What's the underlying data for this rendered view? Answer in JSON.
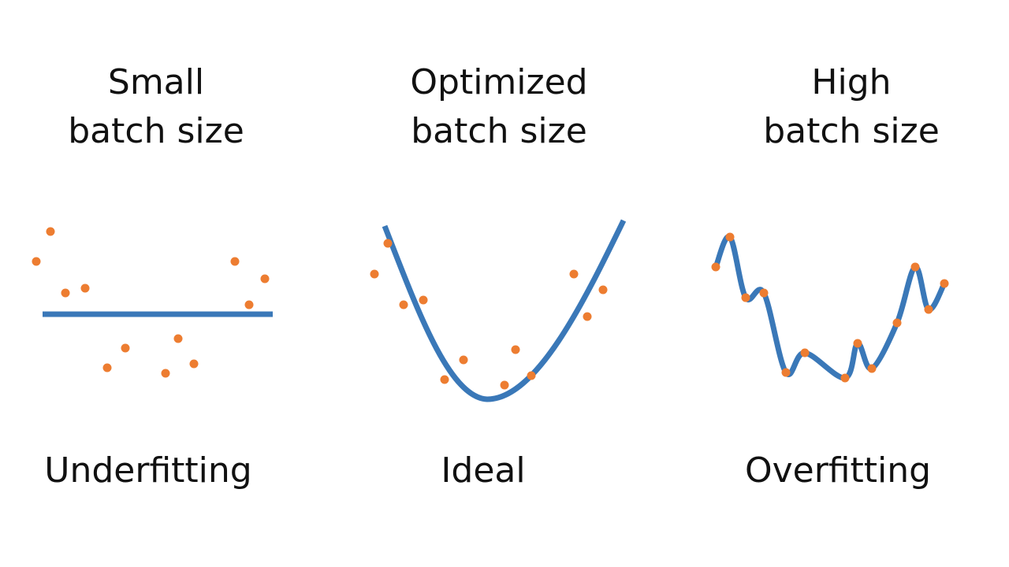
{
  "panels": [
    {
      "title_line1": "Small",
      "title_line2": "batch size",
      "caption": "Underfitting",
      "fit": "flat"
    },
    {
      "title_line1": "Optimized",
      "title_line2": "batch size",
      "caption": "Ideal",
      "fit": "smooth"
    },
    {
      "title_line1": "High",
      "title_line2": "batch size",
      "caption": "Overfitting",
      "fit": "through-every-point"
    }
  ],
  "colors": {
    "curve": "#3a78b8",
    "points": "#ed7d31",
    "text": "#111111",
    "background": "#ffffff"
  }
}
